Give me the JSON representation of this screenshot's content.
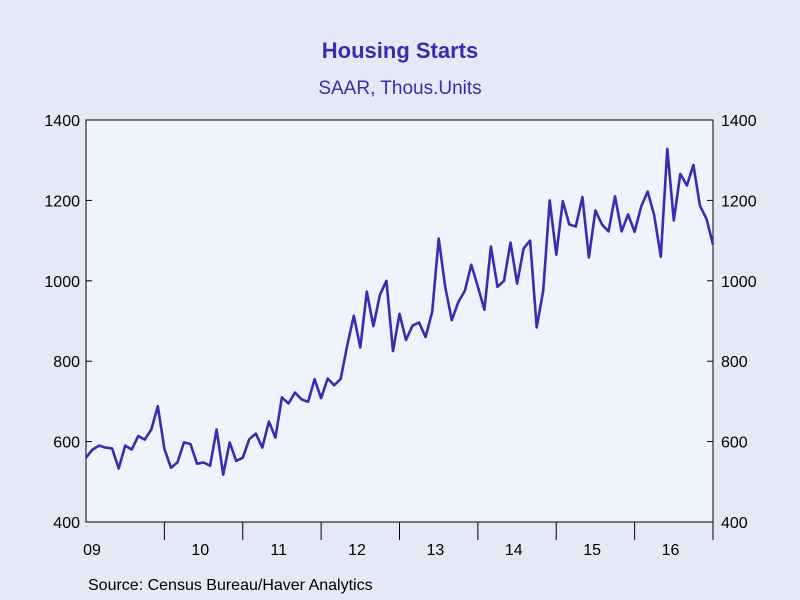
{
  "chart_data": {
    "type": "line",
    "title": "Housing Starts",
    "subtitle": "SAAR, Thous.Units",
    "source": "Source:  Census Bureau/Haver Analytics",
    "colors": {
      "title": "#3e2ab0",
      "line": "#3e2ab0",
      "plot_bg": "#eef4fd",
      "frame": "#000000"
    },
    "x_tick_labels": [
      "09",
      "10",
      "11",
      "12",
      "13",
      "14",
      "15",
      "16"
    ],
    "y_ticks": [
      "400",
      "600",
      "800",
      "1000",
      "1200",
      "1400"
    ],
    "ylim": [
      400,
      1400
    ],
    "grid": false,
    "series": [
      {
        "x_start": "2009-01",
        "frequency": "monthly",
        "values": [
          560,
          580,
          590,
          585,
          583,
          533,
          590,
          580,
          614,
          605,
          630,
          688,
          582,
          535,
          548,
          598,
          594,
          545,
          548,
          540,
          630,
          518,
          598,
          552,
          560,
          606,
          620,
          585,
          650,
          610,
          710,
          695,
          722,
          705,
          699,
          755,
          708,
          757,
          740,
          756,
          840,
          913,
          834,
          973,
          887,
          965,
          1000,
          825,
          918,
          853,
          889,
          896,
          860,
          923,
          1105,
          985,
          902,
          947,
          975,
          1040,
          985,
          928,
          1085,
          985,
          1000,
          1095,
          993,
          1080,
          1100,
          884,
          975,
          1200,
          1065,
          1198,
          1140,
          1135,
          1208,
          1058,
          1175,
          1140,
          1123,
          1210,
          1123,
          1165,
          1122,
          1185,
          1222,
          1163,
          1060,
          1328,
          1150,
          1266,
          1237,
          1288,
          1187,
          1154,
          1090
        ]
      }
    ]
  }
}
